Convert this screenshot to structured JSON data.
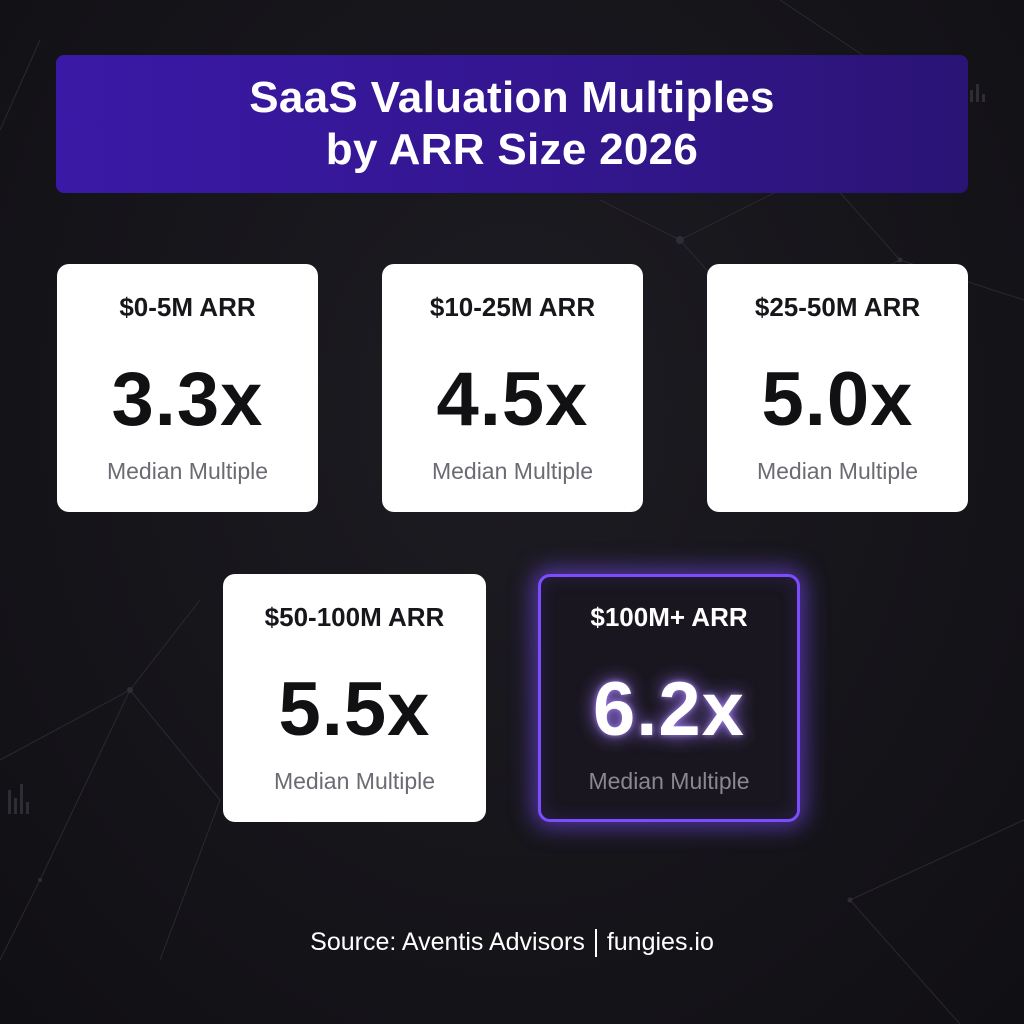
{
  "title": {
    "line1": "SaaS Valuation Multiples",
    "line2": "by ARR Size 2026"
  },
  "cards": [
    {
      "tier": "$0-5M ARR",
      "multiple": "3.3x",
      "caption": "Median Multiple",
      "highlighted": false
    },
    {
      "tier": "$10-25M ARR",
      "multiple": "4.5x",
      "caption": "Median Multiple",
      "highlighted": false
    },
    {
      "tier": "$25-50M ARR",
      "multiple": "5.0x",
      "caption": "Median Multiple",
      "highlighted": false
    },
    {
      "tier": "$50-100M ARR",
      "multiple": "5.5x",
      "caption": "Median Multiple",
      "highlighted": false
    },
    {
      "tier": "$100M+ ARR",
      "multiple": "6.2x",
      "caption": "Median Multiple",
      "highlighted": true
    }
  ],
  "footer": {
    "source": "Source: Aventis Advisors",
    "site": "fungies.io"
  },
  "colors": {
    "banner": "#3a19a6",
    "highlight_border": "#7b4dff",
    "background": "#17161b",
    "card": "#ffffff"
  }
}
